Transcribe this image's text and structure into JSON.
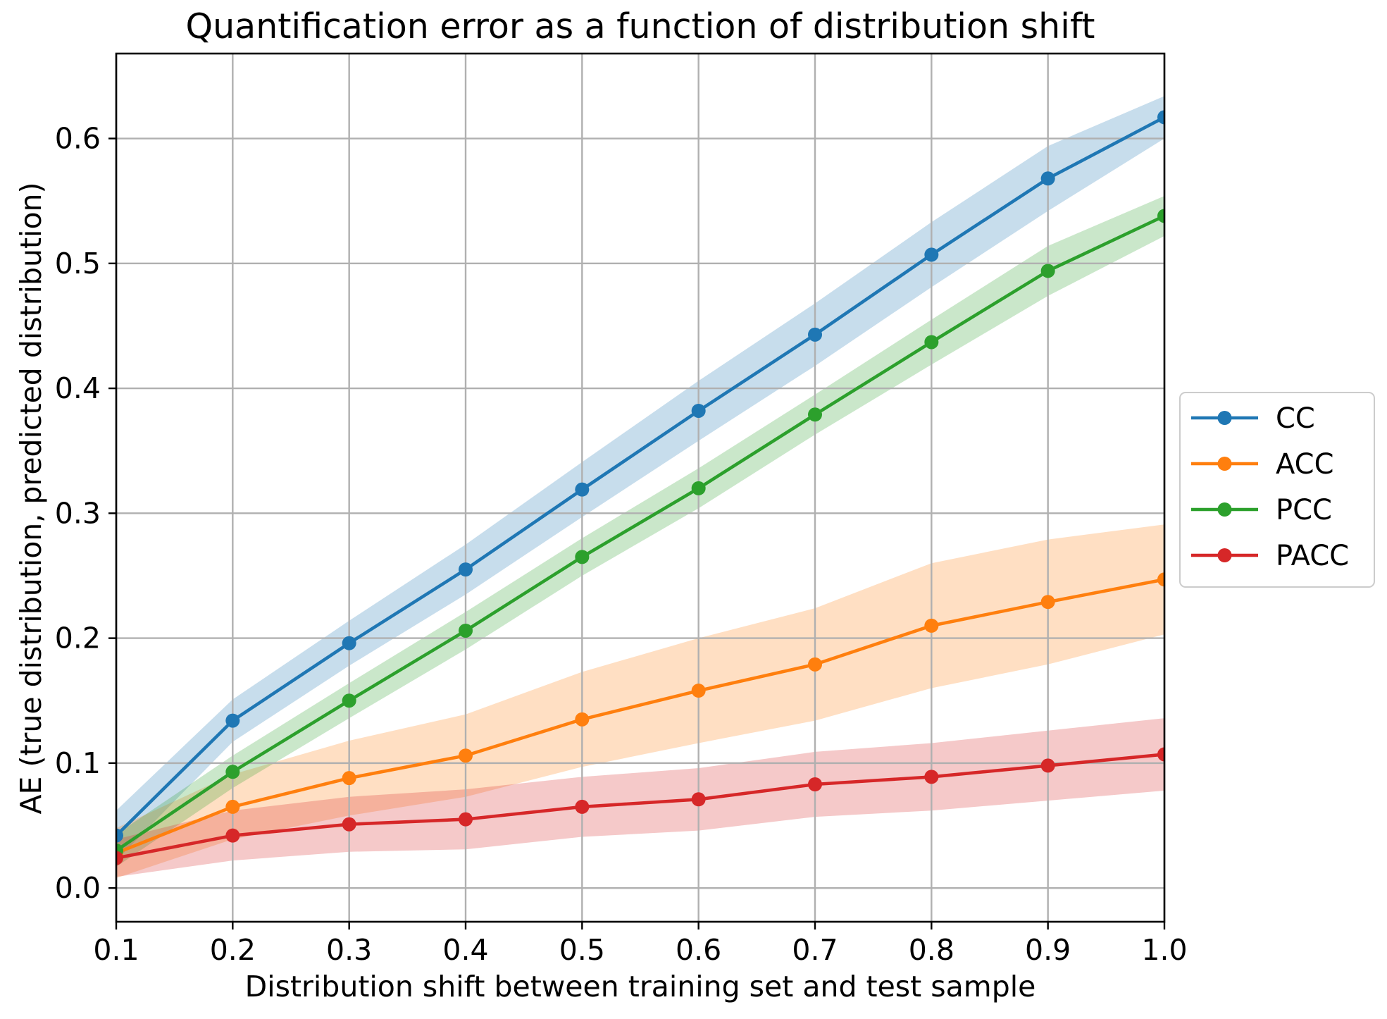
{
  "figure": {
    "title": "Quantification error as a function of distribution shift",
    "xlabel": "Distribution shift between training set and test sample",
    "ylabel": "AE (true distribution, predicted distribution)"
  },
  "styles": {
    "background": "#ffffff",
    "grid_color": "#b0b0b0",
    "spine_color": "#000000",
    "tick_color": "#000000",
    "text_color": "#000000",
    "legend_border": "#cccccc",
    "legend_fill": "#ffffff",
    "band_alpha": 0.25
  },
  "chart_data": {
    "type": "line",
    "title": "Quantification error as a function of distribution shift",
    "xlabel": "Distribution shift between training set and test sample",
    "ylabel": "AE (true distribution, predicted distribution)",
    "x": [
      0.1,
      0.2,
      0.3,
      0.4,
      0.5,
      0.6,
      0.7,
      0.8,
      0.9,
      1.0
    ],
    "xticks": [
      "0.1",
      "0.2",
      "0.3",
      "0.4",
      "0.5",
      "0.6",
      "0.7",
      "0.8",
      "0.9",
      "1.0"
    ],
    "yticks": [
      "0.0",
      "0.1",
      "0.2",
      "0.3",
      "0.4",
      "0.5",
      "0.6"
    ],
    "ytick_values": [
      0.0,
      0.1,
      0.2,
      0.3,
      0.4,
      0.5,
      0.6
    ],
    "xlim": [
      0.1,
      1.0
    ],
    "ylim": [
      -0.027,
      0.668
    ],
    "grid": true,
    "legend_position": "center right outside",
    "series": [
      {
        "name": "CC",
        "color": "#1f77b4",
        "marker": "circle",
        "values": [
          0.042,
          0.134,
          0.196,
          0.255,
          0.319,
          0.382,
          0.443,
          0.507,
          0.568,
          0.617
        ],
        "band_halfwidth": [
          0.02,
          0.017,
          0.018,
          0.02,
          0.022,
          0.024,
          0.025,
          0.026,
          0.026,
          0.017
        ]
      },
      {
        "name": "ACC",
        "color": "#ff7f0e",
        "marker": "circle",
        "values": [
          0.028,
          0.065,
          0.088,
          0.106,
          0.135,
          0.158,
          0.179,
          0.21,
          0.229,
          0.247
        ],
        "band_halfwidth": [
          0.02,
          0.026,
          0.03,
          0.033,
          0.038,
          0.042,
          0.045,
          0.05,
          0.05,
          0.044
        ]
      },
      {
        "name": "PCC",
        "color": "#2ca02c",
        "marker": "circle",
        "values": [
          0.03,
          0.093,
          0.15,
          0.206,
          0.265,
          0.32,
          0.379,
          0.437,
          0.494,
          0.538
        ],
        "band_halfwidth": [
          0.013,
          0.013,
          0.014,
          0.015,
          0.015,
          0.016,
          0.016,
          0.018,
          0.02,
          0.016
        ]
      },
      {
        "name": "PACC",
        "color": "#d62728",
        "marker": "circle",
        "values": [
          0.024,
          0.042,
          0.051,
          0.055,
          0.065,
          0.071,
          0.083,
          0.089,
          0.098,
          0.107
        ],
        "band_halfwidth": [
          0.015,
          0.02,
          0.022,
          0.024,
          0.024,
          0.025,
          0.026,
          0.027,
          0.028,
          0.029
        ]
      }
    ],
    "legend_labels": [
      "CC",
      "ACC",
      "PCC",
      "PACC"
    ]
  }
}
